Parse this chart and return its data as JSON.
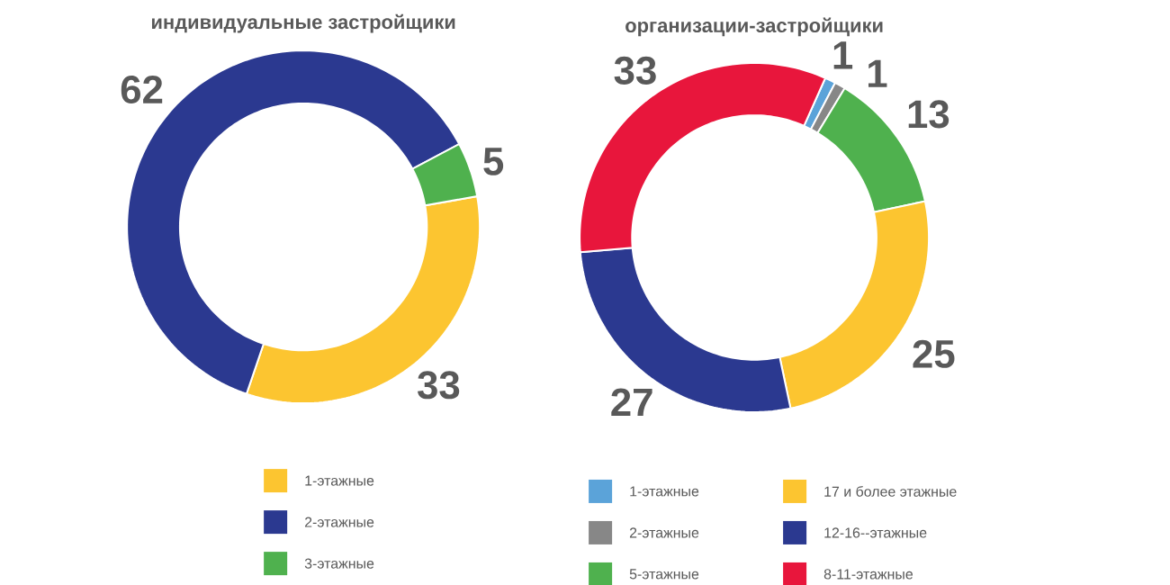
{
  "chart_data": [
    {
      "type": "donut",
      "title": "индивидуальные застройщики",
      "categories": [
        "1-этажные",
        "2-этажные",
        "3-этажные"
      ],
      "values": [
        33,
        62,
        5
      ],
      "colors": [
        "#fcc530",
        "#2b3990",
        "#4fb14e"
      ],
      "data_labels": true,
      "legend": "bottom"
    },
    {
      "type": "donut",
      "title": "организации-застройщики",
      "categories": [
        "1-этажные",
        "2-этажные",
        "5-этажные",
        "17 и более этажные",
        "12-16--этажные",
        "8-11-этажные"
      ],
      "values": [
        1,
        1,
        13,
        25,
        27,
        33
      ],
      "colors": [
        "#5ba3d9",
        "#878787",
        "#4fb14e",
        "#fcc530",
        "#2b3990",
        "#e8163c"
      ],
      "data_labels": true,
      "legend": "bottom"
    }
  ]
}
